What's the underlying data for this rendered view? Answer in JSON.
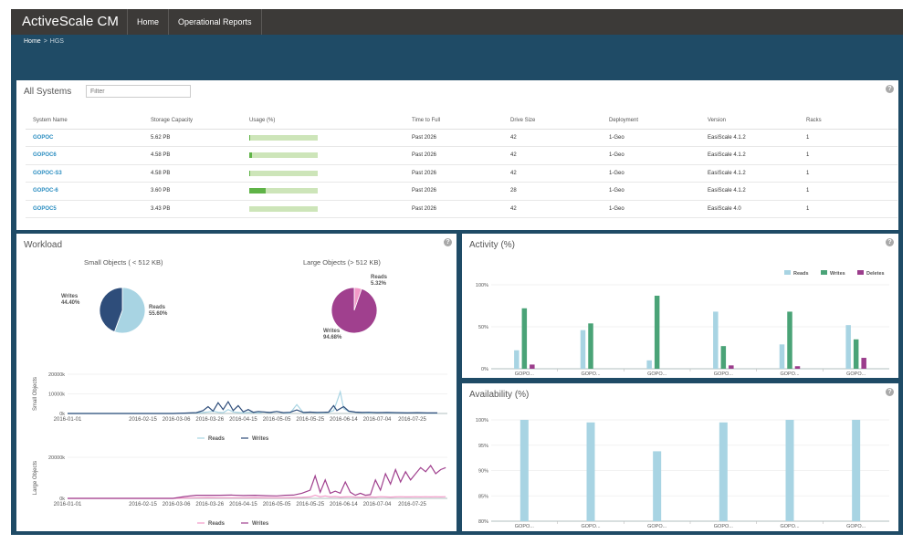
{
  "app": {
    "title": "ActiveScale CM",
    "help_icon_char": "?"
  },
  "nav": [
    {
      "label": "Home"
    },
    {
      "label": "Operational Reports"
    }
  ],
  "breadcrumb": {
    "home": "Home",
    "sep": ">",
    "current": "HGS"
  },
  "systems": {
    "title": "All Systems",
    "filter_placeholder": "Filter",
    "headers": [
      "System Name",
      "Storage Capacity",
      "Usage (%)",
      "Time to Full",
      "Drive Size",
      "Deployment",
      "Version",
      "Racks"
    ],
    "rows": [
      {
        "name": "GOPOC",
        "capacity": "5.62 PB",
        "usage": 1,
        "ttf": "Past 2026",
        "drive": "42",
        "deploy": "1-Geo",
        "version": "EasiScale 4.1.2",
        "racks": "1"
      },
      {
        "name": "GOPOC6",
        "capacity": "4.58 PB",
        "usage": 4,
        "ttf": "Past 2026",
        "drive": "42",
        "deploy": "1-Geo",
        "version": "EasiScale 4.1.2",
        "racks": "1"
      },
      {
        "name": "GOPOC-S3",
        "capacity": "4.58 PB",
        "usage": 1,
        "ttf": "Past 2026",
        "drive": "42",
        "deploy": "1-Geo",
        "version": "EasiScale 4.1.2",
        "racks": "1"
      },
      {
        "name": "GOPOC-6",
        "capacity": "3.60 PB",
        "usage": 24,
        "ttf": "Past 2026",
        "drive": "28",
        "deploy": "1-Geo",
        "version": "EasiScale 4.1.2",
        "racks": "1"
      },
      {
        "name": "GOPOC5",
        "capacity": "3.43 PB",
        "usage": 0,
        "ttf": "Past 2026",
        "drive": "42",
        "deploy": "1-Geo",
        "version": "EasiScale 4.0",
        "racks": "1"
      }
    ]
  },
  "workload": {
    "title": "Workload",
    "small_title": "Small Objects ( < 512 KB)",
    "large_title": "Large Objects (> 512 KB)",
    "small_reads_label": "Reads",
    "small_reads_value": "55.60%",
    "small_writes_label": "Writes",
    "small_writes_value": "44.40%",
    "large_reads_label": "Reads",
    "large_reads_value": "5.32%",
    "large_writes_label": "Writes",
    "large_writes_value": "94.68%",
    "small_ylabel": "Small Objects",
    "large_ylabel": "Large Objects",
    "small_yticks": [
      "20000k",
      "10000k",
      "0k"
    ],
    "large_yticks": [
      "20000k",
      "0k"
    ],
    "dates": [
      "2016-01-01",
      "2016-02-15",
      "2016-03-06",
      "2016-03-26",
      "2016-04-15",
      "2016-05-05",
      "2016-05-25",
      "2016-06-14",
      "2016-07-04",
      "2016-07-25"
    ],
    "legend_reads": "Reads",
    "legend_writes": "Writes",
    "colors": {
      "small_reads": "#a8d4e3",
      "small_writes": "#2e4d7a",
      "large_reads": "#f29ac8",
      "large_writes": "#a0408e"
    }
  },
  "activity": {
    "title": "Activity (%)"
  },
  "availability": {
    "title": "Availability (%)"
  },
  "chart_data": [
    {
      "type": "pie",
      "title": "Small Objects ( < 512 KB)",
      "labels": [
        "Reads",
        "Writes"
      ],
      "values": [
        55.6,
        44.4
      ],
      "colors": [
        "#a8d4e3",
        "#2e4d7a"
      ]
    },
    {
      "type": "pie",
      "title": "Large Objects (> 512 KB)",
      "labels": [
        "Reads",
        "Writes"
      ],
      "values": [
        5.32,
        94.68
      ],
      "colors": [
        "#f29ac8",
        "#a0408e"
      ]
    },
    {
      "type": "line",
      "ylabel": "Small Objects",
      "ylim": [
        0,
        20000
      ],
      "x": [
        "2016-01-01",
        "2016-01-08",
        "2016-01-15",
        "2016-01-22",
        "2016-01-29",
        "2016-02-05",
        "2016-02-12",
        "2016-02-19",
        "2016-02-26",
        "2016-03-04",
        "2016-03-11",
        "2016-03-18",
        "2016-03-22",
        "2016-03-25",
        "2016-03-28",
        "2016-03-31",
        "2016-04-03",
        "2016-04-06",
        "2016-04-09",
        "2016-04-12",
        "2016-04-15",
        "2016-04-18",
        "2016-04-21",
        "2016-04-24",
        "2016-04-27",
        "2016-05-01",
        "2016-05-05",
        "2016-05-09",
        "2016-05-13",
        "2016-05-17",
        "2016-05-21",
        "2016-05-25",
        "2016-05-29",
        "2016-06-02",
        "2016-06-05",
        "2016-06-08",
        "2016-06-10",
        "2016-06-12",
        "2016-06-14",
        "2016-06-17",
        "2016-06-21",
        "2016-06-25",
        "2016-06-29",
        "2016-07-04",
        "2016-07-10",
        "2016-07-16",
        "2016-07-22",
        "2016-07-28",
        "2016-08-03",
        "2016-08-09"
      ],
      "series": [
        {
          "name": "Reads",
          "color": "#a8d4e3",
          "values": [
            0,
            0,
            0,
            0,
            0,
            0,
            0,
            0,
            0,
            0,
            200,
            300,
            500,
            800,
            1200,
            600,
            400,
            2000,
            800,
            500,
            300,
            600,
            500,
            300,
            800,
            400,
            1000,
            300,
            200,
            4500,
            300,
            800,
            300,
            400,
            600,
            1500,
            6000,
            11000,
            2500,
            1000,
            600,
            400,
            300,
            500,
            300,
            400,
            300,
            300,
            200,
            200
          ]
        },
        {
          "name": "Writes",
          "color": "#2e4d7a",
          "values": [
            0,
            0,
            0,
            0,
            0,
            0,
            0,
            0,
            0,
            0,
            200,
            400,
            1500,
            3500,
            1200,
            5500,
            2000,
            6000,
            1500,
            4000,
            800,
            2000,
            600,
            1000,
            800,
            500,
            1000,
            400,
            600,
            1800,
            500,
            700,
            500,
            600,
            700,
            4000,
            1500,
            2500,
            3500,
            1200,
            700,
            500,
            600,
            400,
            500,
            400,
            300,
            400,
            300,
            300
          ]
        }
      ]
    },
    {
      "type": "line",
      "ylabel": "Large Objects",
      "ylim": [
        0,
        20000
      ],
      "x": [
        "2016-01-01",
        "2016-01-08",
        "2016-01-15",
        "2016-01-22",
        "2016-01-29",
        "2016-02-05",
        "2016-02-12",
        "2016-02-19",
        "2016-02-26",
        "2016-03-04",
        "2016-03-11",
        "2016-03-18",
        "2016-03-25",
        "2016-04-01",
        "2016-04-08",
        "2016-04-15",
        "2016-04-22",
        "2016-04-29",
        "2016-05-05",
        "2016-05-10",
        "2016-05-15",
        "2016-05-20",
        "2016-05-25",
        "2016-05-28",
        "2016-05-31",
        "2016-06-03",
        "2016-06-06",
        "2016-06-09",
        "2016-06-12",
        "2016-06-15",
        "2016-06-18",
        "2016-06-21",
        "2016-06-24",
        "2016-06-27",
        "2016-06-30",
        "2016-07-03",
        "2016-07-06",
        "2016-07-09",
        "2016-07-12",
        "2016-07-15",
        "2016-07-18",
        "2016-07-21",
        "2016-07-24",
        "2016-07-27",
        "2016-07-30",
        "2016-08-02",
        "2016-08-05",
        "2016-08-08",
        "2016-08-11",
        "2016-08-14"
      ],
      "series": [
        {
          "name": "Reads",
          "color": "#f29ac8",
          "values": [
            0,
            0,
            0,
            0,
            0,
            0,
            0,
            0,
            0,
            0,
            200,
            300,
            400,
            300,
            300,
            300,
            400,
            300,
            300,
            300,
            400,
            500,
            700,
            1500,
            800,
            1200,
            700,
            900,
            600,
            700,
            800,
            600,
            500,
            600,
            700,
            600,
            800,
            700,
            600,
            700,
            800,
            700,
            700,
            800,
            700,
            800,
            700,
            800,
            700,
            800
          ]
        },
        {
          "name": "Writes",
          "color": "#a0408e",
          "values": [
            0,
            0,
            0,
            0,
            0,
            0,
            0,
            0,
            0,
            0,
            900,
            1500,
            1500,
            1500,
            1600,
            1400,
            1500,
            1300,
            1200,
            1500,
            1600,
            2500,
            4000,
            11000,
            3000,
            9000,
            2500,
            3500,
            2500,
            8000,
            3000,
            1500,
            2500,
            1500,
            1800,
            9000,
            4000,
            12000,
            7000,
            14000,
            8000,
            13000,
            9000,
            12000,
            15000,
            13000,
            16000,
            12000,
            14000,
            15000
          ]
        }
      ]
    },
    {
      "type": "bar",
      "title": "Activity (%)",
      "ylim": [
        0,
        100
      ],
      "categories": [
        "GOPO...",
        "GOPO...",
        "GOPO...",
        "GOPO...",
        "GOPO...",
        "GOPO..."
      ],
      "yticks": [
        "100%",
        "50%",
        "0%"
      ],
      "series": [
        {
          "name": "Reads",
          "color": "#a8d4e3",
          "values": [
            22,
            46,
            10,
            68,
            29,
            52
          ]
        },
        {
          "name": "Writes",
          "color": "#4aa377",
          "values": [
            72,
            54,
            87,
            27,
            68,
            35
          ]
        },
        {
          "name": "Deletes",
          "color": "#9b3d8c",
          "values": [
            5,
            0,
            0,
            4,
            3,
            13
          ]
        }
      ]
    },
    {
      "type": "bar",
      "title": "Availability (%)",
      "ylim": [
        80,
        100
      ],
      "categories": [
        "GOPO...",
        "GOPO...",
        "GOPO...",
        "GOPO...",
        "GOPO...",
        "GOPO..."
      ],
      "yticks": [
        "100%",
        "95%",
        "90%",
        "85%",
        "80%"
      ],
      "series": [
        {
          "name": "Availability",
          "color": "#a8d4e3",
          "values": [
            100,
            99.5,
            93.8,
            99.5,
            100,
            100
          ]
        }
      ]
    }
  ]
}
